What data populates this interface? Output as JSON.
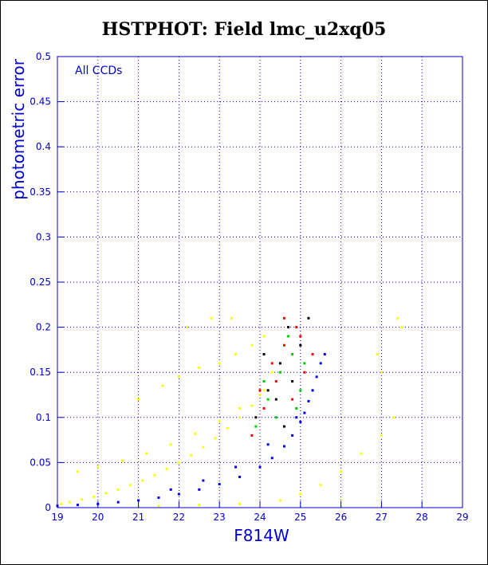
{
  "colors": {
    "axis": "#0000cc",
    "yellow_series": "#ffff00",
    "blue_series": "#0000ff",
    "green_series": "#00cc00",
    "red_series": "#ff0000",
    "black_series": "#000000"
  },
  "chart_data": {
    "type": "scatter",
    "title": "HSTPHOT: Field lmc_u2xq05",
    "xlabel": "F814W",
    "ylabel": "photometric error",
    "annotation": "All CCDs",
    "xlim": [
      19,
      29
    ],
    "ylim": [
      0,
      0.5
    ],
    "grid": true,
    "x_ticks": [
      "19",
      "20",
      "21",
      "22",
      "23",
      "24",
      "25",
      "26",
      "27",
      "28",
      "29"
    ],
    "y_ticks": [
      "0",
      "0.05",
      "0.1",
      "0.15",
      "0.2",
      "0.25",
      "0.3",
      "0.35",
      "0.4",
      "0.45",
      "0.5"
    ],
    "series": [
      {
        "color": "yellow",
        "x": [
          19.1,
          19.3,
          19.6,
          19.9,
          20.2,
          20.5,
          20.8,
          21.1,
          21.4,
          21.7,
          22.0,
          22.3,
          22.6,
          22.9,
          23.2,
          23.5,
          23.8,
          24.1,
          24.3,
          19.5,
          20.0,
          20.6,
          21.2,
          21.8,
          22.4,
          23.0,
          23.5,
          24.0,
          21.0,
          21.6,
          22.0,
          22.5,
          23.0,
          23.4,
          23.8,
          24.1,
          22.2,
          22.8,
          23.3,
          21.5,
          22.5,
          23.5,
          24.5,
          25.0,
          25.5,
          26.0,
          26.5,
          27.0,
          27.3,
          27.0,
          27.5,
          27.4,
          26.9
        ],
        "y": [
          0.004,
          0.006,
          0.009,
          0.012,
          0.016,
          0.02,
          0.025,
          0.03,
          0.036,
          0.043,
          0.05,
          0.058,
          0.067,
          0.077,
          0.088,
          0.1,
          0.113,
          0.13,
          0.15,
          0.04,
          0.045,
          0.052,
          0.06,
          0.07,
          0.082,
          0.096,
          0.11,
          0.125,
          0.12,
          0.135,
          0.145,
          0.155,
          0.16,
          0.17,
          0.18,
          0.19,
          0.2,
          0.21,
          0.21,
          0.002,
          0.003,
          0.004,
          0.008,
          0.015,
          0.025,
          0.04,
          0.06,
          0.08,
          0.1,
          0.15,
          0.2,
          0.21,
          0.17
        ]
      },
      {
        "color": "blue",
        "x": [
          19.0,
          19.5,
          20.0,
          20.5,
          21.0,
          21.5,
          22.0,
          22.5,
          23.0,
          23.5,
          24.0,
          24.3,
          24.6,
          24.8,
          25.0,
          25.1,
          25.2,
          25.3,
          25.4,
          25.5,
          25.6,
          21.8,
          22.6,
          23.4,
          24.2,
          24.9
        ],
        "y": [
          0.002,
          0.003,
          0.004,
          0.006,
          0.008,
          0.011,
          0.015,
          0.02,
          0.026,
          0.034,
          0.045,
          0.055,
          0.068,
          0.08,
          0.095,
          0.105,
          0.118,
          0.13,
          0.145,
          0.16,
          0.17,
          0.02,
          0.03,
          0.045,
          0.07,
          0.1
        ]
      },
      {
        "color": "green",
        "x": [
          23.9,
          24.2,
          24.5,
          24.8,
          25.0,
          24.4,
          24.7,
          25.1,
          24.1,
          24.9
        ],
        "y": [
          0.09,
          0.12,
          0.15,
          0.17,
          0.13,
          0.1,
          0.19,
          0.16,
          0.14,
          0.11
        ]
      },
      {
        "color": "red",
        "x": [
          23.8,
          24.1,
          24.4,
          24.6,
          24.9,
          25.1,
          24.3,
          24.8,
          25.3,
          24.0,
          24.6,
          25.0
        ],
        "y": [
          0.08,
          0.11,
          0.14,
          0.18,
          0.2,
          0.15,
          0.16,
          0.12,
          0.17,
          0.13,
          0.21,
          0.19
        ]
      },
      {
        "color": "black",
        "x": [
          23.9,
          24.2,
          24.5,
          24.7,
          25.0,
          24.4,
          24.8,
          25.2,
          24.1,
          24.6
        ],
        "y": [
          0.1,
          0.13,
          0.16,
          0.2,
          0.18,
          0.12,
          0.14,
          0.21,
          0.17,
          0.09
        ]
      }
    ]
  }
}
